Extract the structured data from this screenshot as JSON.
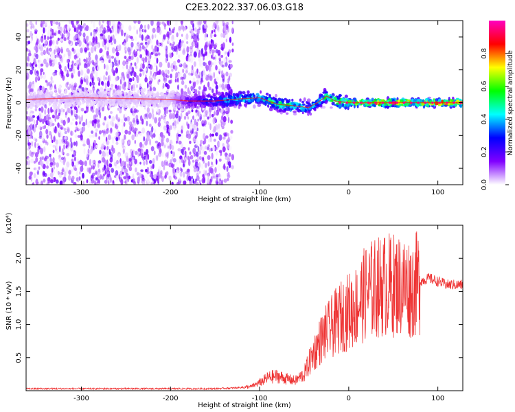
{
  "title": "C2E3.2022.337.06.03.G18",
  "chart_data": [
    {
      "type": "heatmap",
      "xlabel": "Height of straight line (km)",
      "ylabel": "Frequency (Hz)",
      "xlim": [
        -362,
        128
      ],
      "ylim": [
        -50,
        50
      ],
      "x_ticks": [
        -300,
        -200,
        -100,
        0,
        100
      ],
      "y_ticks": [
        -40,
        -20,
        0,
        20,
        40
      ],
      "x_tick_labels": [
        "-300",
        "-200",
        "-100",
        "0",
        "100"
      ],
      "y_tick_labels": [
        "-40",
        "-20",
        "0",
        "20",
        "40"
      ],
      "colorbar": {
        "label": "Normalized spectral amplitude",
        "range": [
          0,
          1
        ],
        "ticks": [
          0.0,
          0.2,
          0.4,
          0.6,
          0.8
        ],
        "tick_labels": [
          "0.0",
          "0.2",
          "0.4",
          "0.6",
          "0.8"
        ],
        "colors": [
          "#ffffff",
          "#8000ff",
          "#0000ff",
          "#00ffff",
          "#00ff00",
          "#ffff00",
          "#ff0000",
          "#ff00c0"
        ]
      },
      "ridge": {
        "x": [
          -362,
          -300,
          -200,
          -180,
          -150,
          -130,
          -100,
          -80,
          -60,
          -45,
          -35,
          -25,
          -15,
          0,
          20,
          40,
          60,
          75,
          90,
          110,
          128
        ],
        "frequency": [
          2,
          3,
          2,
          1,
          1,
          2,
          3,
          -1,
          -2,
          -3,
          0,
          4,
          1,
          0,
          0,
          0,
          0,
          0,
          0,
          0,
          0
        ],
        "amplitude": [
          0.05,
          0.05,
          0.05,
          0.2,
          0.3,
          0.45,
          0.5,
          0.55,
          0.5,
          0.45,
          0.4,
          0.6,
          0.6,
          0.75,
          0.8,
          0.8,
          0.85,
          0.7,
          0.85,
          0.85,
          0.8
        ]
      }
    },
    {
      "type": "line",
      "xlabel": "Height of straight line (km)",
      "ylabel": "SNR (10 * v/v)",
      "scale_label": "(x10⁴)",
      "xlim": [
        -362,
        128
      ],
      "ylim": [
        0,
        2.5
      ],
      "x_ticks": [
        -300,
        -200,
        -100,
        0,
        100
      ],
      "y_ticks": [
        0.5,
        1.0,
        1.5,
        2.0
      ],
      "x_tick_labels": [
        "-300",
        "-200",
        "-100",
        "0",
        "100"
      ],
      "y_tick_labels": [
        "0.5",
        "1.0",
        "1.5",
        "2.0"
      ],
      "color": "#ee3333",
      "series": [
        {
          "x": [
            -362,
            -300,
            -200,
            -150,
            -130,
            -110,
            -100,
            -90,
            -80,
            -70,
            -60,
            -50,
            -40,
            -30,
            -20,
            -10,
            0,
            10,
            20,
            30,
            40,
            50,
            60,
            70,
            80,
            90,
            100,
            110,
            120,
            128
          ],
          "y": [
            0.03,
            0.03,
            0.03,
            0.03,
            0.04,
            0.06,
            0.12,
            0.2,
            0.22,
            0.18,
            0.15,
            0.25,
            0.55,
            0.8,
            0.95,
            1.1,
            1.2,
            1.3,
            1.5,
            1.55,
            1.6,
            1.6,
            1.6,
            1.55,
            1.65,
            1.7,
            1.65,
            1.6,
            1.6,
            1.6
          ]
        }
      ]
    }
  ]
}
